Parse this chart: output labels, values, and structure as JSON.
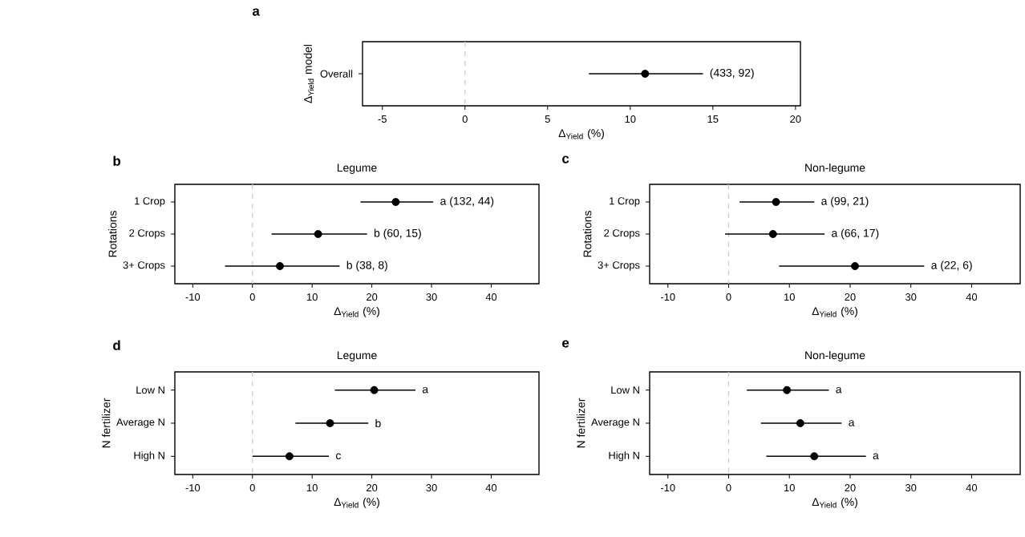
{
  "chart_data": [
    {
      "type": "scatter",
      "orientation": "horizontal",
      "annotations": [
        "a",
        {
          "text": "(433, 92)",
          "x": 14.4,
          "y": "Overall"
        }
      ],
      "ylabel": "Δ$_{Yield}$ model",
      "xlabel": "Δ$_{Yield}$ (%)",
      "categories": [
        "Overall"
      ],
      "values": [
        10.9
      ],
      "errors": [
        [
          7.5,
          14.4
        ]
      ],
      "xlim": [
        -6.2,
        20.3
      ],
      "xticks": [
        -5,
        0,
        5,
        10,
        15,
        20
      ],
      "ref_lines": [
        {
          "axis": "x",
          "value": 0,
          "color": "#c8c8c8",
          "line_style": "dashed"
        }
      ],
      "marker": "circle",
      "color": "#000000"
    },
    {
      "type": "scatter",
      "orientation": "horizontal",
      "annotations": [
        "b",
        {
          "text": "a (132, 44)",
          "x": 30.3,
          "y": "1 Crop"
        },
        {
          "text": "b (60, 15)",
          "x": 19.2,
          "y": "2 Crops"
        },
        {
          "text": "b (38, 8)",
          "x": 14.6,
          "y": "3+ Crops"
        }
      ],
      "title": "Legume",
      "ylabel": "Rotations",
      "xlabel": "Δ$_{Yield}$ (%)",
      "categories": [
        "1 Crop",
        "2 Crops",
        "3+ Crops"
      ],
      "values": [
        24.0,
        11.0,
        4.6
      ],
      "errors": [
        [
          18.1,
          30.3
        ],
        [
          3.2,
          19.2
        ],
        [
          -4.6,
          14.6
        ]
      ],
      "xlim": [
        -13,
        48
      ],
      "xticks": [
        -10,
        0,
        10,
        20,
        30,
        40
      ],
      "ref_lines": [
        {
          "axis": "x",
          "value": 0,
          "color": "#c8c8c8",
          "line_style": "dashed"
        }
      ],
      "marker": "circle",
      "color": "#000000"
    },
    {
      "type": "scatter",
      "orientation": "horizontal",
      "annotations": [
        "c",
        {
          "text": "a (99, 21)",
          "x": 14.1,
          "y": "1 Crop"
        },
        {
          "text": "a (66, 17)",
          "x": 15.8,
          "y": "2 Crops"
        },
        {
          "text": "a (22, 6)",
          "x": 32.2,
          "y": "3+ Crops"
        }
      ],
      "title": "Non-legume",
      "ylabel": "Rotations",
      "xlabel": "Δ$_{Yield}$ (%)",
      "categories": [
        "1 Crop",
        "2 Crops",
        "3+ Crops"
      ],
      "values": [
        7.8,
        7.3,
        20.8
      ],
      "errors": [
        [
          1.8,
          14.1
        ],
        [
          -0.6,
          15.8
        ],
        [
          8.3,
          32.2
        ]
      ],
      "xlim": [
        -13,
        48
      ],
      "xticks": [
        -10,
        0,
        10,
        20,
        30,
        40
      ],
      "ref_lines": [
        {
          "axis": "x",
          "value": 0,
          "color": "#c8c8c8",
          "line_style": "dashed"
        }
      ],
      "marker": "circle",
      "color": "#000000"
    },
    {
      "type": "scatter",
      "orientation": "horizontal",
      "annotations": [
        "d",
        {
          "text": "a",
          "x": 27.3,
          "y": "Low N"
        },
        {
          "text": "b",
          "x": 19.4,
          "y": "Average N"
        },
        {
          "text": "c",
          "x": 12.8,
          "y": "High N"
        }
      ],
      "title": "Legume",
      "ylabel": "N fertilizer",
      "xlabel": "Δ$_{Yield}$ (%)",
      "categories": [
        "Low N",
        "Average N",
        "High N"
      ],
      "values": [
        20.4,
        13.0,
        6.2
      ],
      "errors": [
        [
          13.8,
          27.3
        ],
        [
          7.2,
          19.4
        ],
        [
          0,
          12.8
        ]
      ],
      "xlim": [
        -13,
        48
      ],
      "xticks": [
        -10,
        0,
        10,
        20,
        30,
        40
      ],
      "ref_lines": [
        {
          "axis": "x",
          "value": 0,
          "color": "#c8c8c8",
          "line_style": "dashed"
        }
      ],
      "marker": "circle",
      "color": "#000000"
    },
    {
      "type": "scatter",
      "orientation": "horizontal",
      "annotations": [
        "e",
        {
          "text": "a",
          "x": 16.5,
          "y": "Low N"
        },
        {
          "text": "a",
          "x": 18.6,
          "y": "Average N"
        },
        {
          "text": "a",
          "x": 22.6,
          "y": "High N"
        }
      ],
      "title": "Non-legume",
      "ylabel": "N fertilizer",
      "xlabel": "Δ$_{Yield}$ (%)",
      "categories": [
        "Low N",
        "Average N",
        "High N"
      ],
      "values": [
        9.6,
        11.8,
        14.1
      ],
      "errors": [
        [
          3.0,
          16.5
        ],
        [
          5.3,
          18.6
        ],
        [
          6.2,
          22.6
        ]
      ],
      "xlim": [
        -13,
        48
      ],
      "xticks": [
        -10,
        0,
        10,
        20,
        30,
        40
      ],
      "ref_lines": [
        {
          "axis": "x",
          "value": 0,
          "color": "#c8c8c8",
          "line_style": "dashed"
        }
      ],
      "marker": "circle",
      "color": "#000000"
    }
  ]
}
